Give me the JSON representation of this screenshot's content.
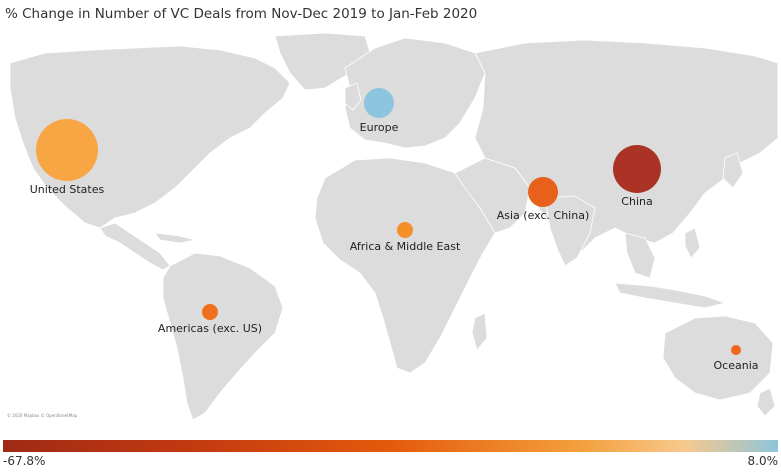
{
  "title": "% Change in Number of VC Deals from Nov-Dec 2019 to Jan-Feb 2020",
  "map": {
    "credit": "© 2020 Mapbox © OpenStreetMap",
    "regions": [
      {
        "name": "United States",
        "color": "#f9a23a"
      },
      {
        "name": "Europe",
        "color": "#89c3dd"
      },
      {
        "name": "Africa & Middle East",
        "color": "#f58a1f"
      },
      {
        "name": "Asia (exc. China)",
        "color": "#e85a0f"
      },
      {
        "name": "China",
        "color": "#a8291a"
      },
      {
        "name": "Americas (exc. US)",
        "color": "#ef6a12"
      },
      {
        "name": "Oceania",
        "color": "#ef6010"
      }
    ]
  },
  "legend": {
    "min_label": "-67.8%",
    "max_label": "8.0%",
    "colors": [
      "#9e2a16",
      "#e45a0c",
      "#f4a13f",
      "#8ec5da"
    ]
  }
}
